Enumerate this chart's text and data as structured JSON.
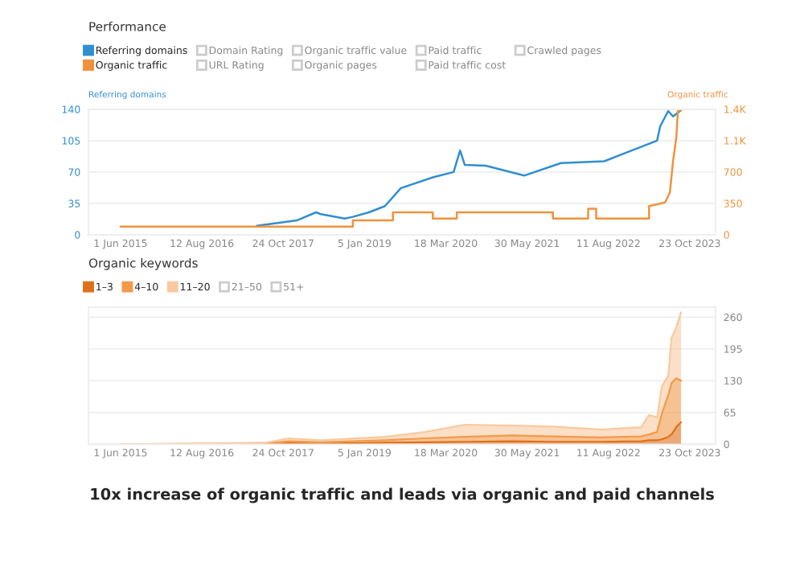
{
  "chart_data": [
    {
      "type": "line",
      "title": "Performance",
      "ylabel": "Referring domains",
      "y2label": "Organic traffic",
      "series": [
        {
          "name": "Referring domains",
          "color": "#2f8fd0",
          "axis": "y",
          "x": [
            "2017-06-04",
            "2018-01-05",
            "2018-04-19",
            "2018-05-15",
            "2018-09-21",
            "2018-11-03",
            "2019-01-29",
            "2019-04-25",
            "2019-07-20",
            "2020-01-08",
            "2020-04-29",
            "2020-06-03",
            "2020-06-28",
            "2020-10-19",
            "2021-05-14",
            "2021-11-28",
            "2022-07-19",
            "2022-11-08",
            "2023-04-30",
            "2023-05-17",
            "2023-06-29",
            "2023-07-25",
            "2023-09-06"
          ],
          "values": [
            10,
            16,
            25,
            23,
            18,
            20,
            25,
            32,
            52,
            64,
            70,
            94,
            78,
            77,
            66,
            80,
            82,
            91,
            105,
            121,
            138,
            132,
            139
          ]
        },
        {
          "name": "Organic traffic",
          "color": "#f0923c",
          "axis": "y2",
          "x": [
            "2015-06-01",
            "2018-11-03",
            "2018-11-03",
            "2019-06-07",
            "2019-06-07",
            "2020-01-08",
            "2020-01-08",
            "2020-05-16",
            "2020-05-16",
            "2021-10-16",
            "2021-10-16",
            "2022-04-24",
            "2022-04-24",
            "2022-06-06",
            "2022-06-06",
            "2023-03-18",
            "2023-03-18",
            "2023-06-12",
            "2023-07-08",
            "2023-07-25",
            "2023-08-12",
            "2023-08-20",
            "2023-09-06"
          ],
          "values": [
            90,
            90,
            160,
            160,
            250,
            250,
            180,
            180,
            250,
            250,
            180,
            180,
            290,
            290,
            180,
            180,
            320,
            360,
            470,
            820,
            1090,
            1380,
            1390
          ]
        }
      ],
      "xlim": [
        "2014-12-10",
        "2024-03-10"
      ],
      "xticks": [
        {
          "value": "2015-06-01",
          "label": "1 Jun 2015"
        },
        {
          "value": "2016-08-12",
          "label": "12 Aug 2016"
        },
        {
          "value": "2017-10-24",
          "label": "24 Oct 2017"
        },
        {
          "value": "2019-01-05",
          "label": "5 Jan 2019"
        },
        {
          "value": "2020-03-18",
          "label": "18 Mar 2020"
        },
        {
          "value": "2021-05-30",
          "label": "30 May 2021"
        },
        {
          "value": "2022-08-11",
          "label": "11 Aug 2022"
        },
        {
          "value": "2023-10-23",
          "label": "23 Oct 2023"
        }
      ],
      "ylim": [
        0,
        140
      ],
      "yticks": [
        0,
        35,
        70,
        105,
        140
      ],
      "y2lim": [
        0,
        1400
      ],
      "y2ticks": [
        0,
        350,
        700,
        {
          "value": 1050,
          "label": "1.1K"
        },
        {
          "value": 1400,
          "label": "1.4K"
        }
      ],
      "grid": "y",
      "legend": "top left",
      "annotations": [
        "Domain Rating",
        "URL Rating",
        "Organic traffic value",
        "Organic pages",
        "Paid traffic",
        "Paid traffic cost",
        "Crawled pages"
      ]
    },
    {
      "type": "area",
      "title": "Organic keywords",
      "stacked": true,
      "x": [
        "2015-06-01",
        "2017-07-17",
        "2017-11-23",
        "2018-05-15",
        "2019-04-25",
        "2019-11-26",
        "2020-06-28",
        "2021-03-14",
        "2021-10-16",
        "2022-07-02",
        "2023-02-03",
        "2023-03-18",
        "2023-04-30",
        "2023-05-26",
        "2023-06-29",
        "2023-07-17",
        "2023-08-12",
        "2023-09-06"
      ],
      "series": [
        {
          "name": "1–3",
          "color": "#e0701a",
          "axis": "y2",
          "values": [
            0,
            0,
            2,
            1,
            3,
            4,
            5,
            6,
            5,
            5,
            6,
            8,
            8,
            10,
            15,
            20,
            35,
            45
          ]
        },
        {
          "name": "4–10",
          "color": "#f29a4a",
          "axis": "y2",
          "values": [
            0,
            1,
            4,
            3,
            5,
            8,
            10,
            12,
            11,
            9,
            10,
            12,
            17,
            53,
            85,
            105,
            100,
            85
          ]
        },
        {
          "name": "11–20",
          "color": "#f9c9a0",
          "axis": "y2",
          "values": [
            0,
            2,
            6,
            4,
            7,
            13,
            25,
            20,
            20,
            16,
            19,
            40,
            30,
            56,
            40,
            93,
            105,
            140
          ]
        }
      ],
      "xlim": [
        "2014-12-10",
        "2024-03-10"
      ],
      "xticks": [
        {
          "value": "2015-06-01",
          "label": "1 Jun 2015"
        },
        {
          "value": "2016-08-12",
          "label": "12 Aug 2016"
        },
        {
          "value": "2017-10-24",
          "label": "24 Oct 2017"
        },
        {
          "value": "2019-01-05",
          "label": "5 Jan 2019"
        },
        {
          "value": "2020-03-18",
          "label": "18 Mar 2020"
        },
        {
          "value": "2021-05-30",
          "label": "30 May 2021"
        },
        {
          "value": "2022-08-11",
          "label": "11 Aug 2022"
        },
        {
          "value": "2023-10-23",
          "label": "23 Oct 2023"
        }
      ],
      "y2lim": [
        0,
        280
      ],
      "y2ticks": [
        0,
        65,
        130,
        195,
        260
      ],
      "grid": "y",
      "legend": "top left",
      "annotations": [
        "21–50",
        "51+",
        "10x increase of organic traffic and leads via organic and paid channels"
      ]
    }
  ]
}
